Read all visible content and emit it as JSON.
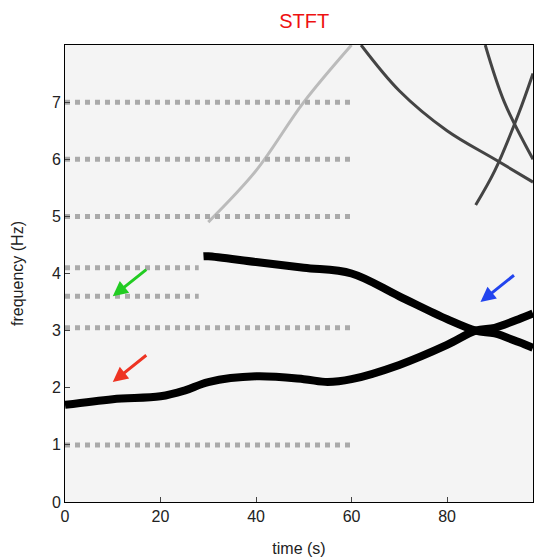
{
  "chart_data": {
    "type": "line",
    "title": "STFT",
    "x_label": "time (s)",
    "y_label": "frequency (Hz)",
    "xlim": [
      0,
      98
    ],
    "ylim": [
      0,
      8
    ],
    "xticks": [
      0,
      20,
      40,
      60,
      80
    ],
    "yticks": [
      0,
      1,
      2,
      3,
      4,
      5,
      6,
      7
    ],
    "grid": false,
    "series": [
      {
        "color": "#000000",
        "line_style": "solid",
        "x": [
          0,
          10,
          20,
          25,
          30,
          40,
          50,
          55,
          60,
          70,
          80,
          86,
          90,
          95,
          98
        ],
        "values": [
          1.7,
          1.8,
          1.85,
          1.95,
          2.1,
          2.2,
          2.15,
          2.1,
          2.15,
          2.4,
          2.75,
          3.0,
          3.05,
          3.2,
          3.3
        ]
      },
      {
        "color": "#000000",
        "line_style": "solid",
        "x": [
          29,
          30,
          40,
          50,
          60,
          70,
          80,
          86,
          90,
          95,
          98
        ],
        "values": [
          4.3,
          4.3,
          4.2,
          4.1,
          4.0,
          3.6,
          3.2,
          3.0,
          2.95,
          2.8,
          2.7
        ]
      },
      {
        "color": "#444444",
        "line_style": "solid",
        "x": [
          62,
          70,
          80,
          90,
          98
        ],
        "values": [
          8.0,
          7.2,
          6.5,
          6.0,
          5.6
        ]
      },
      {
        "color": "#444444",
        "line_style": "solid",
        "x": [
          86,
          90,
          95,
          98
        ],
        "values": [
          5.2,
          5.8,
          6.8,
          7.5
        ]
      },
      {
        "color": "#444444",
        "line_style": "solid",
        "x": [
          88,
          92,
          98
        ],
        "values": [
          8.0,
          7.0,
          6.0
        ]
      },
      {
        "color": "#bbbbbb",
        "line_style": "solid",
        "x": [
          30,
          40,
          50,
          60
        ],
        "values": [
          4.9,
          5.8,
          7.0,
          8.0
        ]
      },
      {
        "color": "#aaaaaa",
        "line_style": "dot",
        "x": [
          0,
          60
        ],
        "values": [
          1.0,
          1.0
        ]
      },
      {
        "color": "#aaaaaa",
        "line_style": "dot",
        "x": [
          0,
          60
        ],
        "values": [
          3.05,
          3.05
        ]
      },
      {
        "color": "#aaaaaa",
        "line_style": "dot",
        "x": [
          0,
          28
        ],
        "values": [
          3.6,
          3.6
        ]
      },
      {
        "color": "#aaaaaa",
        "line_style": "dot",
        "x": [
          0,
          28
        ],
        "values": [
          4.1,
          4.1
        ]
      },
      {
        "color": "#aaaaaa",
        "line_style": "dot",
        "x": [
          0,
          60
        ],
        "values": [
          5.0,
          5.0
        ]
      },
      {
        "color": "#aaaaaa",
        "line_style": "dot",
        "x": [
          0,
          60
        ],
        "values": [
          6.0,
          6.0
        ]
      },
      {
        "color": "#aaaaaa",
        "line_style": "dot",
        "x": [
          0,
          60
        ],
        "values": [
          7.0,
          7.0
        ]
      }
    ],
    "annotations": [
      {
        "x": 10,
        "y": 3.6,
        "color": "#22cc22"
      },
      {
        "x": 10,
        "y": 2.1,
        "color": "#ee3322"
      },
      {
        "x": 87,
        "y": 3.5,
        "color": "#2244ee"
      }
    ]
  }
}
